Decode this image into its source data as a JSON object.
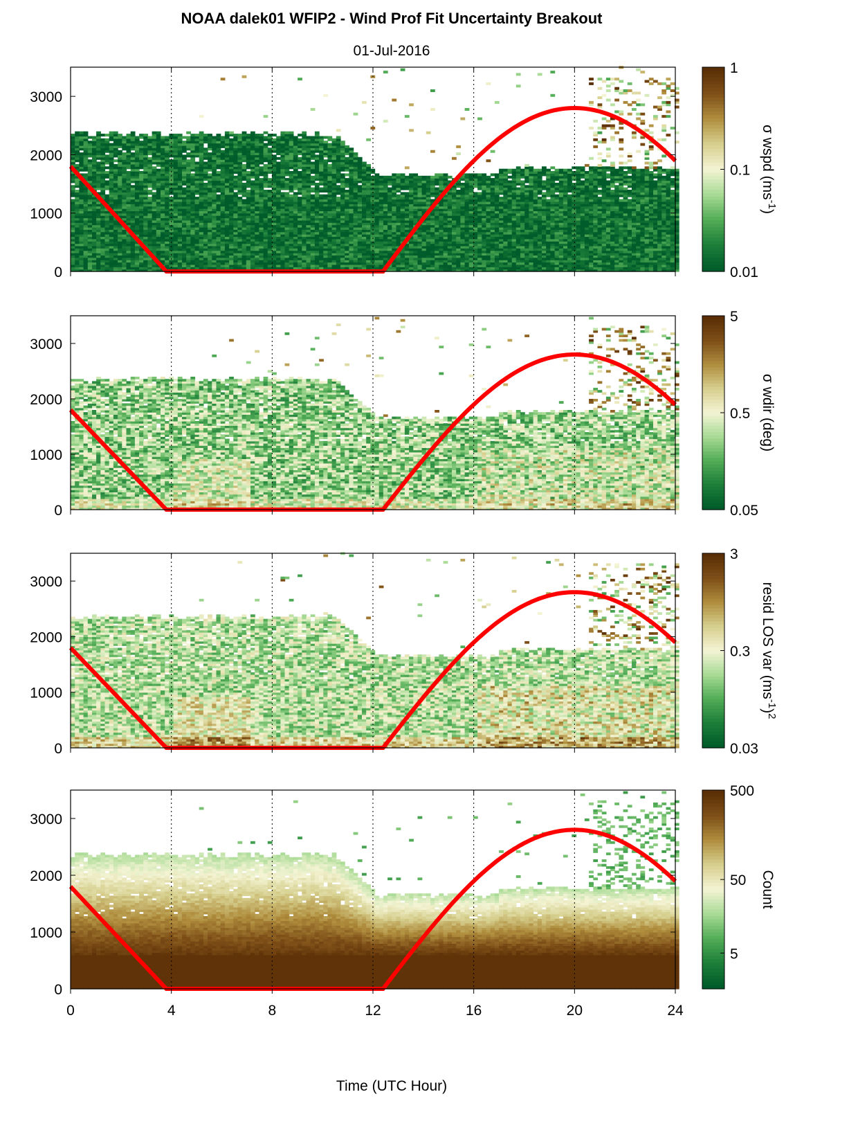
{
  "figure": {
    "title": "NOAA dalek01 WFIP2 - Wind Prof Fit Uncertainty Breakout",
    "subtitle": "01-Jul-2016",
    "xlabel": "Time (UTC Hour)"
  },
  "colors": {
    "sun_curve": "#ff0000",
    "colormap": [
      "#005c2a",
      "#1d7f3a",
      "#53ad57",
      "#a9db96",
      "#f4f4d4",
      "#d6cf8e",
      "#b08e3e",
      "#7f5018",
      "#5a2e06"
    ]
  },
  "chart_data": [
    {
      "type": "heatmap",
      "name": "sigma_wspd",
      "xlim": [
        0,
        24
      ],
      "ylim": [
        0,
        3500
      ],
      "xticks": [
        0,
        4,
        8,
        12,
        16,
        20,
        24
      ],
      "yticks": [
        0,
        1000,
        2000,
        3000
      ],
      "grid": "vertical dotted at 4,8,12,16,20",
      "colorbar": {
        "label": "σ wspd (ms",
        "label_sup": "-1",
        "label_end": ")",
        "scale": "log",
        "range": [
          0.01,
          1
        ],
        "ticks": [
          "1",
          "0.1",
          "0.01"
        ]
      },
      "field": {
        "base_level": 0.12,
        "bias": -0.05,
        "noise": 0.16,
        "coverage": "full",
        "bump": 0.0
      },
      "sun_elevation_curve": [
        [
          0,
          1800
        ],
        [
          3.8,
          0
        ],
        [
          12.4,
          0
        ],
        [
          16,
          1760
        ],
        [
          18,
          2560
        ],
        [
          20,
          2800
        ],
        [
          22,
          2520
        ],
        [
          24,
          1920
        ]
      ]
    },
    {
      "type": "heatmap",
      "name": "sigma_wdir",
      "xlim": [
        0,
        24
      ],
      "ylim": [
        0,
        3500
      ],
      "xticks": [
        0,
        4,
        8,
        12,
        16,
        20,
        24
      ],
      "yticks": [
        0,
        1000,
        2000,
        3000
      ],
      "grid": "vertical dotted at 4,8,12,16,20",
      "colorbar": {
        "label": "σ wdir (deg)",
        "label_sup": "",
        "label_end": "",
        "scale": "log",
        "range": [
          0.05,
          5
        ],
        "ticks": [
          "5",
          "0.5",
          "0.05"
        ]
      },
      "field": {
        "base_level": 0.3,
        "bias": 0.05,
        "noise": 0.2,
        "coverage": "full",
        "bump": 0.22
      },
      "sun_elevation_curve": [
        [
          0,
          1800
        ],
        [
          3.8,
          0
        ],
        [
          12.4,
          0
        ],
        [
          16,
          1760
        ],
        [
          18,
          2560
        ],
        [
          20,
          2800
        ],
        [
          22,
          2520
        ],
        [
          24,
          1920
        ]
      ]
    },
    {
      "type": "heatmap",
      "name": "resid_los_var",
      "xlim": [
        0,
        24
      ],
      "ylim": [
        0,
        3500
      ],
      "xticks": [
        0,
        4,
        8,
        12,
        16,
        20,
        24
      ],
      "yticks": [
        0,
        1000,
        2000,
        3000
      ],
      "grid": "vertical dotted at 4,8,12,16,20",
      "colorbar": {
        "label": "resid LOS var (ms",
        "label_sup": "-1",
        "label_end": ")",
        "label_sup2": "2",
        "scale": "log",
        "range": [
          0.03,
          3
        ],
        "ticks": [
          "3",
          "0.3",
          "0.03"
        ]
      },
      "field": {
        "base_level": 0.4,
        "bias": 0.0,
        "noise": 0.18,
        "coverage": "full",
        "bump": 0.3
      },
      "sun_elevation_curve": [
        [
          0,
          1800
        ],
        [
          3.8,
          0
        ],
        [
          12.4,
          0
        ],
        [
          16,
          1760
        ],
        [
          18,
          2560
        ],
        [
          20,
          2800
        ],
        [
          22,
          2520
        ],
        [
          24,
          1920
        ]
      ]
    },
    {
      "type": "heatmap",
      "name": "count",
      "xlim": [
        0,
        24
      ],
      "ylim": [
        0,
        3500
      ],
      "xticks": [
        0,
        4,
        8,
        12,
        16,
        20,
        24
      ],
      "yticks": [
        0,
        1000,
        2000,
        3000
      ],
      "grid": "vertical dotted at 4,8,12,16,20",
      "colorbar": {
        "label": "Count",
        "label_sup": "",
        "label_end": "",
        "scale": "log",
        "range": [
          1,
          500
        ],
        "ticks": [
          "500",
          "50",
          "5"
        ]
      },
      "field": {
        "base_level": 0.9,
        "bias": 0.0,
        "noise": 0.06,
        "coverage": "count",
        "bump": 0.0
      },
      "sun_elevation_curve": [
        [
          0,
          1800
        ],
        [
          3.8,
          0
        ],
        [
          12.4,
          0
        ],
        [
          16,
          1760
        ],
        [
          18,
          2560
        ],
        [
          20,
          2800
        ],
        [
          22,
          2520
        ],
        [
          24,
          1920
        ]
      ]
    }
  ]
}
